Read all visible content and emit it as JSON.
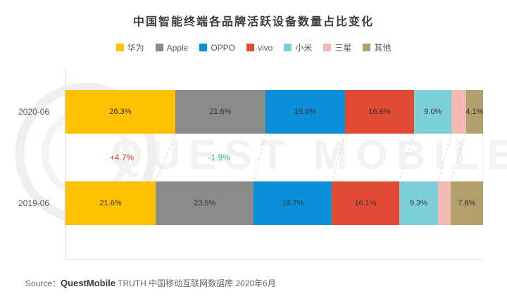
{
  "title": "中国智能终端各品牌活跃设备数量占比变化",
  "chart_data": {
    "type": "bar",
    "subtype": "horizontal-stacked",
    "categories": [
      "2020-06",
      "2019-06"
    ],
    "xlim": [
      0,
      100
    ],
    "grid": false,
    "legend_position": "top",
    "series": [
      {
        "name": "华为",
        "color": "#FFC000",
        "values": [
          26.3,
          21.6
        ],
        "labels": [
          "26.3%",
          "21.6%"
        ]
      },
      {
        "name": "Apple",
        "color": "#8A8A8A",
        "values": [
          21.6,
          23.5
        ],
        "labels": [
          "21.6%",
          "23.5%"
        ]
      },
      {
        "name": "OPPO",
        "color": "#0B8FD9",
        "values": [
          19.0,
          18.7
        ],
        "labels": [
          "19.0%",
          "18.7%"
        ]
      },
      {
        "name": "vivo",
        "color": "#E14B33",
        "values": [
          16.6,
          16.1
        ],
        "labels": [
          "16.6%",
          "16.1%"
        ]
      },
      {
        "name": "小米",
        "color": "#7ED0D8",
        "values": [
          9.0,
          9.3
        ],
        "labels": [
          "9.0%",
          "9.3%"
        ]
      },
      {
        "name": "三星",
        "color": "#F3B9B3",
        "values": [
          3.4,
          3.0
        ],
        "labels": [
          "",
          ""
        ]
      },
      {
        "name": "其他",
        "color": "#B2A06C",
        "values": [
          4.1,
          7.8
        ],
        "labels": [
          "4.1%",
          "7.8%"
        ]
      }
    ],
    "deltas": [
      {
        "text": "+4.7%",
        "color": "#E83E31",
        "x_percent": 13.5
      },
      {
        "text": "-1.9%",
        "color": "#32B16C",
        "x_percent": 36.8
      }
    ]
  },
  "watermark": {
    "text": "QUEST MOBILE"
  },
  "source": {
    "label": "Source：",
    "brand": "QuestMobile",
    "text": " TRUTH 中国移动互联网数据库 2020年6月"
  }
}
